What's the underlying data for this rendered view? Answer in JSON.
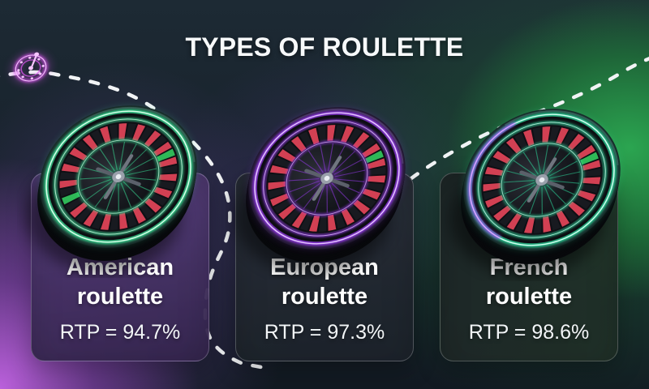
{
  "title": "TYPES OF ROULETTE",
  "cards": [
    {
      "id": "american",
      "title": "American roulette",
      "rtp_label": "RTP = 94.7%",
      "rtp_percent": 94.7,
      "neon_color": "#3cf0a0",
      "neon_bright": "#d9ffe9",
      "zero_pockets": 2
    },
    {
      "id": "european",
      "title": "European roulette",
      "rtp_label": "RTP = 97.3%",
      "rtp_percent": 97.3,
      "neon_color": "#a23cff",
      "neon_bright": "#e5c6ff",
      "zero_pockets": 1
    },
    {
      "id": "french",
      "title": "French roulette",
      "rtp_label": "RTP = 98.6%",
      "rtp_percent": 98.6,
      "neon_color": "#2fe8a6",
      "neon_bright": "#d2fff0",
      "accent_color": "#9b3ef0",
      "accent_bright": "#dcb4ff",
      "zero_pockets": 1
    }
  ],
  "decor": {
    "dash_color": "#f1f3f5",
    "icon_color": "#dd55f2",
    "icon_bright": "#f6c4ff",
    "pocket_red": "#d24053",
    "pocket_black": "#181a20",
    "pocket_green": "#2fb857",
    "background_green": "#268c44",
    "background_purple": "#b45fe0"
  }
}
